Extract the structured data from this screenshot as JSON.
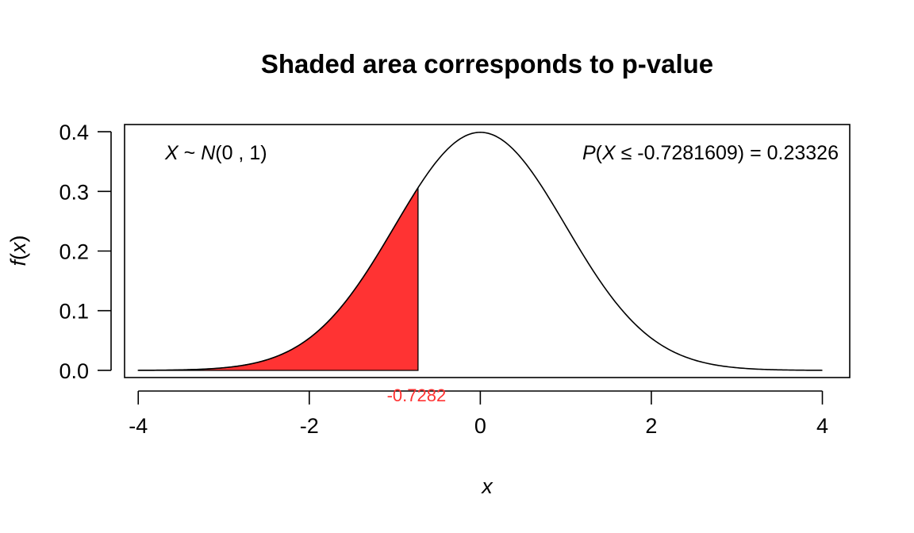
{
  "chart_data": {
    "type": "area",
    "title": "Shaded area corresponds to p-value",
    "xlabel": "x",
    "ylabel_fn": "f",
    "ylabel_arg": "x",
    "xlim": [
      -4.16,
      4.32
    ],
    "ylim": [
      -0.012,
      0.412
    ],
    "xticks": [
      -4,
      -2,
      0,
      2,
      4
    ],
    "xtick_labels": [
      "-4",
      "-2",
      "0",
      "2",
      "4"
    ],
    "yticks": [
      0.0,
      0.1,
      0.2,
      0.3,
      0.4
    ],
    "ytick_labels": [
      "0.0",
      "0.1",
      "0.2",
      "0.3",
      "0.4"
    ],
    "grid": false,
    "curve": {
      "distribution": "normal",
      "mean": 0,
      "sd": 1,
      "x_range": [
        -4,
        4
      ]
    },
    "shaded_region": {
      "from": -4,
      "to": -0.7281609,
      "color": "#ff3333"
    },
    "cutoff": {
      "value": -0.7281609,
      "label": "-0.7282",
      "color": "#ff3333"
    },
    "annotations": {
      "distribution": {
        "var": "X",
        "tilde": " ~ ",
        "dist": "N",
        "params": "(0 , 1)"
      },
      "probability": {
        "p": "P",
        "open": "(",
        "var": "X",
        "rest": " ≤ -0.7281609) = 0.23326"
      }
    }
  }
}
